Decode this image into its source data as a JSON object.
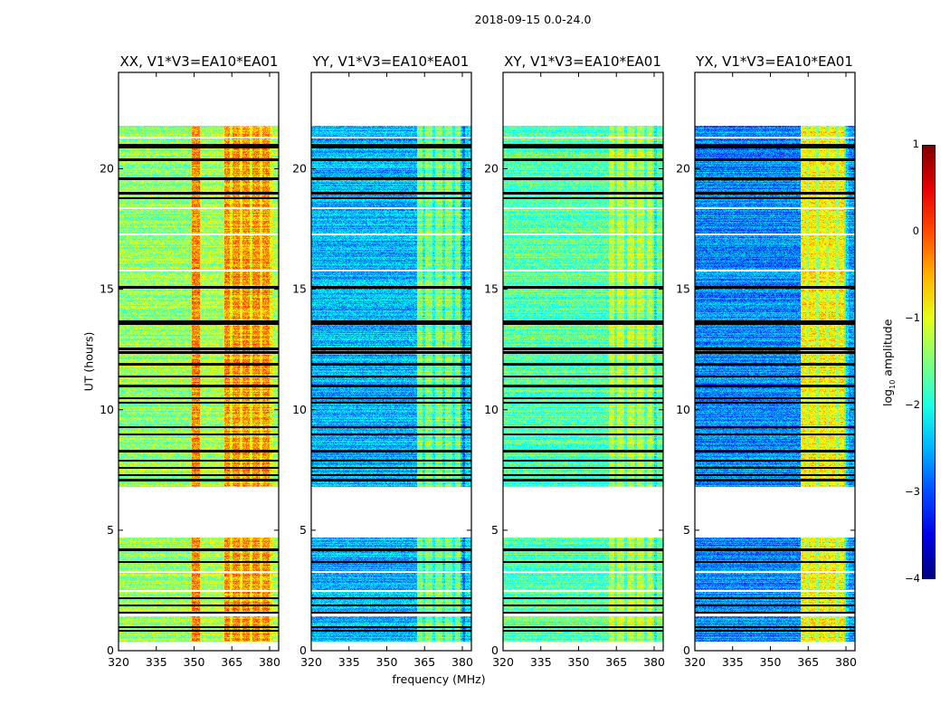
{
  "chart_data": {
    "type": "heatmap",
    "title": "2018-09-15 0.0-24.0",
    "xlabel": "frequency (MHz)",
    "ylabel": "UT (hours)",
    "xlim": [
      320,
      383.6
    ],
    "ylim": [
      0,
      24
    ],
    "xticks": [
      "320",
      "335",
      "350",
      "365",
      "380"
    ],
    "yticks": [
      "0",
      "5",
      "10",
      "15",
      "20"
    ],
    "colorbar": {
      "label": "log10 amplitude",
      "label_main": "log",
      "label_sub": "10",
      "label_rest": " amplitude",
      "range": [
        -4,
        1
      ],
      "ticks": [
        "1",
        "0",
        "−1",
        "−2",
        "−3",
        "−4"
      ],
      "colormap": "jet"
    },
    "data_segments_hours": [
      [
        0.4,
        4.7
      ],
      [
        6.8,
        21.8
      ]
    ],
    "flagged_rows_hours": [
      0.85,
      1.0,
      1.6,
      1.9,
      2.2,
      3.7,
      4.2,
      7.1,
      7.3,
      7.6,
      7.9,
      8.3,
      9.0,
      9.3,
      10.3,
      10.5,
      11.0,
      11.4,
      11.9,
      12.4,
      12.55,
      13.6,
      13.7,
      15.1,
      18.8,
      19.0,
      19.6,
      20.4,
      20.9,
      21.0
    ],
    "empty_rows_hours": [
      1.5,
      2.5,
      3.3,
      15.8,
      17.3,
      18.4,
      21.3
    ],
    "panels": [
      {
        "title": "XX, V1*V3=EA10*EA01",
        "bands": [
          {
            "fmin": 320,
            "fmax": 349,
            "log_amp": -1.4
          },
          {
            "fmin": 349,
            "fmax": 352,
            "log_amp": -0.3
          },
          {
            "fmin": 352,
            "fmax": 362,
            "log_amp": -1.3
          },
          {
            "fmin": 362,
            "fmax": 381,
            "log_amp": -0.35
          },
          {
            "fmin": 381,
            "fmax": 384,
            "log_amp": -1.3
          }
        ]
      },
      {
        "title": "YY, V1*V3=EA10*EA01",
        "bands": [
          {
            "fmin": 320,
            "fmax": 362,
            "log_amp": -2.5
          },
          {
            "fmin": 362,
            "fmax": 379,
            "log_amp": -1.5
          },
          {
            "fmin": 379,
            "fmax": 384,
            "log_amp": -2.3
          }
        ]
      },
      {
        "title": "XY, V1*V3=EA10*EA01",
        "bands": [
          {
            "fmin": 320,
            "fmax": 362,
            "log_amp": -1.7
          },
          {
            "fmin": 362,
            "fmax": 379,
            "log_amp": -1.2
          },
          {
            "fmin": 379,
            "fmax": 384,
            "log_amp": -1.6
          }
        ]
      },
      {
        "title": "YX, V1*V3=EA10*EA01",
        "bands": [
          {
            "fmin": 320,
            "fmax": 362,
            "log_amp": -2.7
          },
          {
            "fmin": 362,
            "fmax": 379,
            "log_amp": -0.8
          },
          {
            "fmin": 379,
            "fmax": 381,
            "log_amp": -1.8
          },
          {
            "fmin": 381,
            "fmax": 384,
            "log_amp": -2.6
          }
        ]
      }
    ]
  }
}
